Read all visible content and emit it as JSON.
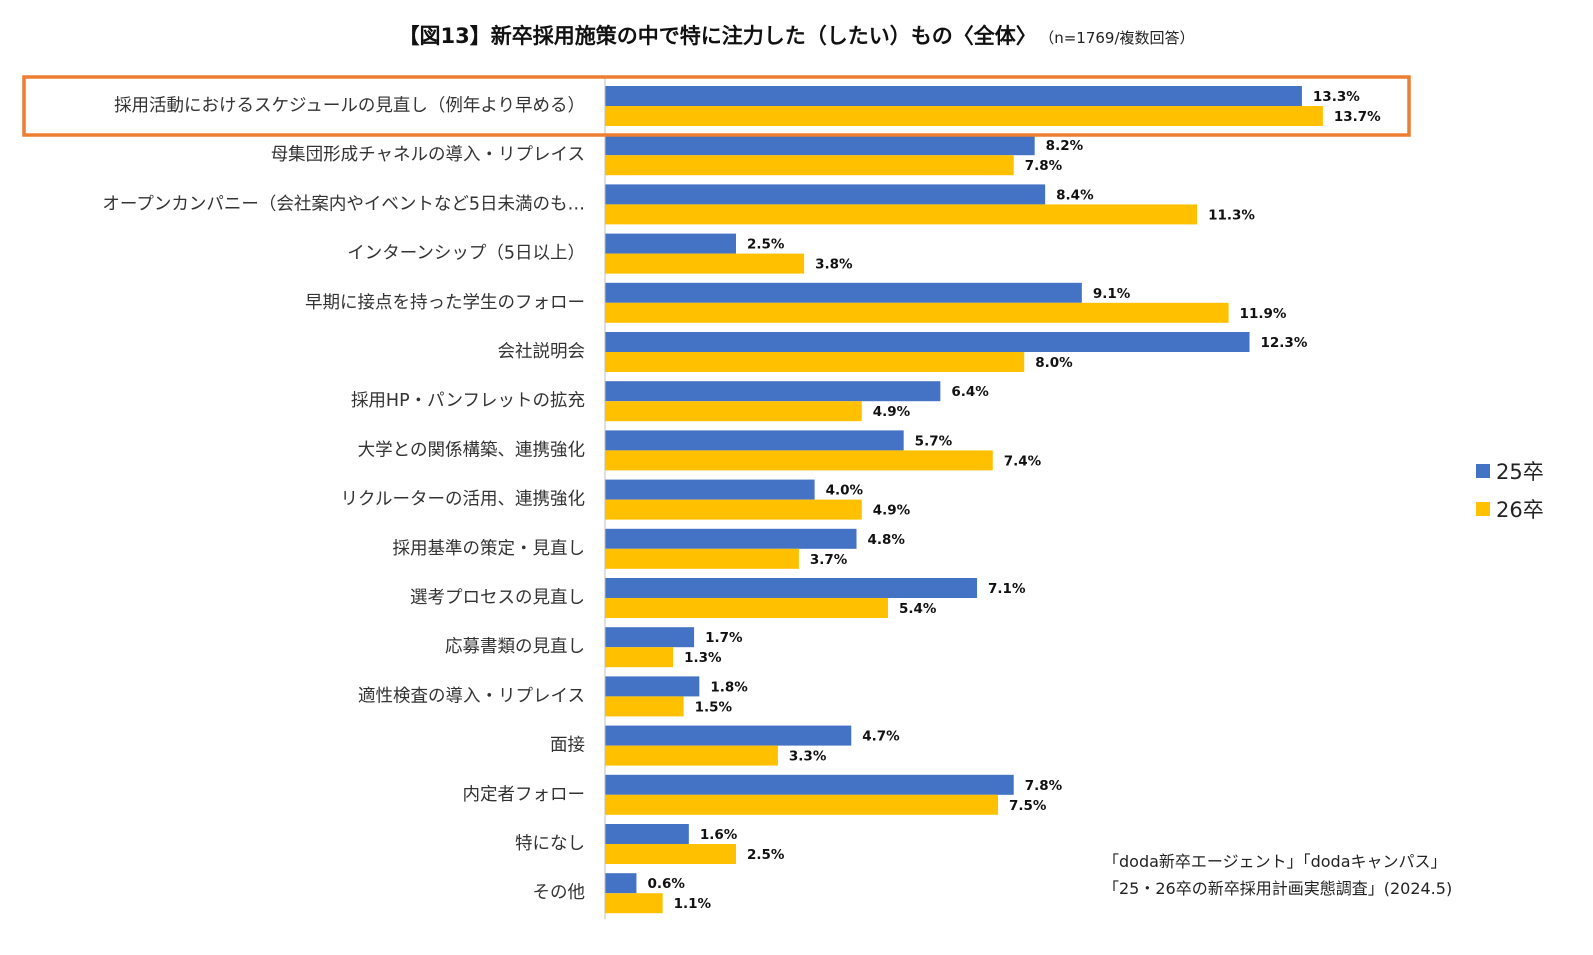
{
  "header": {
    "title": "【図13】新卒採用施策の中で特に注力した（したい）もの〈全体〉",
    "subtitle": "（n=1769/複数回答）"
  },
  "colors": {
    "series_25": "#4472C4",
    "series_26": "#FFC000",
    "highlight": "#ED7D31",
    "axis": "#BFBFBF"
  },
  "chart_data": {
    "type": "bar",
    "orientation": "horizontal",
    "categories": [
      "採用活動におけるスケジュールの見直し（例年より早める）",
      "母集団形成チャネルの導入・リプレイス",
      "オープンカンパニー（会社案内やイベントなど5日未満のも…",
      "インターンシップ（5日以上）",
      "早期に接点を持った学生のフォロー",
      "会社説明会",
      "採用HP・パンフレットの拡充",
      "大学との関係構築、連携強化",
      "リクルーターの活用、連携強化",
      "採用基準の策定・見直し",
      "選考プロセスの見直し",
      "応募書類の見直し",
      "適性検査の導入・リプレイス",
      "面接",
      "内定者フォロー",
      "特になし",
      "その他"
    ],
    "series": [
      {
        "name": "25卒",
        "values": [
          13.3,
          8.2,
          8.4,
          2.5,
          9.1,
          12.3,
          6.4,
          5.7,
          4.0,
          4.8,
          7.1,
          1.7,
          1.8,
          4.7,
          7.8,
          1.6,
          0.6
        ],
        "labels": [
          "13.3%",
          "8.2%",
          "8.4%",
          "2.5%",
          "9.1%",
          "12.3%",
          "6.4%",
          "5.7%",
          "4.0%",
          "4.8%",
          "7.1%",
          "1.7%",
          "1.8%",
          "4.7%",
          "7.8%",
          "1.6%",
          "0.6%"
        ]
      },
      {
        "name": "26卒",
        "values": [
          13.7,
          7.8,
          11.3,
          3.8,
          11.9,
          8.0,
          4.9,
          7.4,
          4.9,
          3.7,
          5.4,
          1.3,
          1.5,
          3.3,
          7.5,
          2.5,
          1.1
        ],
        "labels": [
          "13.7%",
          "7.8%",
          "11.3%",
          "3.8%",
          "11.9%",
          "8.0%",
          "4.9%",
          "7.4%",
          "4.9%",
          "3.7%",
          "5.4%",
          "1.3%",
          "1.5%",
          "3.3%",
          "7.5%",
          "2.5%",
          "1.1%"
        ]
      }
    ],
    "highlighted_category_index": 0,
    "legend_position": "right",
    "grid": false
  },
  "source": {
    "line1": "「doda新卒エージェント」「dodaキャンパス」",
    "line2": "「25・26卒の新卒採用計画実態調査」(2024.5)"
  }
}
